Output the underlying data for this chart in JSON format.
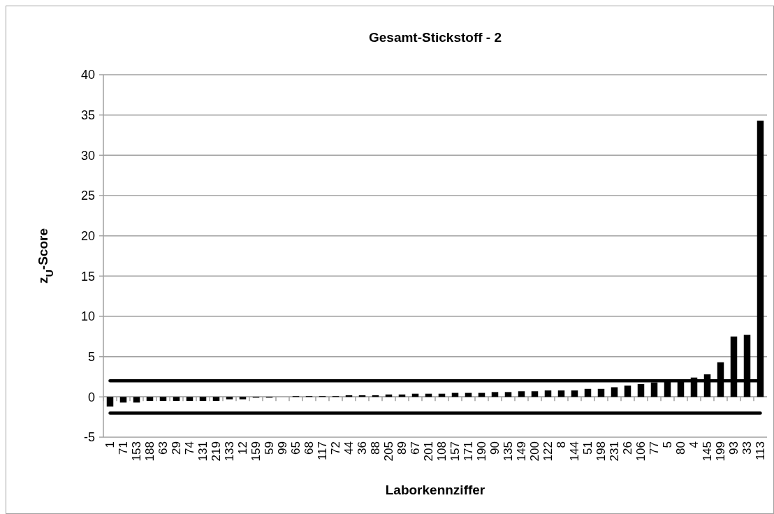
{
  "chart_data": {
    "type": "bar",
    "title": "Gesamt-Stickstoff - 2",
    "xlabel": "Laborkennziffer",
    "ylabel": "z$_{U}$-Score",
    "categories": [
      "1",
      "71",
      "153",
      "188",
      "63",
      "29",
      "74",
      "131",
      "219",
      "133",
      "12",
      "159",
      "59",
      "99",
      "65",
      "68",
      "117",
      "72",
      "44",
      "36",
      "88",
      "205",
      "89",
      "67",
      "201",
      "108",
      "157",
      "171",
      "190",
      "90",
      "135",
      "149",
      "200",
      "122",
      "8",
      "144",
      "51",
      "198",
      "231",
      "26",
      "106",
      "77",
      "5",
      "80",
      "4",
      "145",
      "199",
      "93",
      "33",
      "113"
    ],
    "values": [
      -1.2,
      -0.7,
      -0.7,
      -0.5,
      -0.5,
      -0.5,
      -0.5,
      -0.5,
      -0.5,
      -0.3,
      -0.3,
      -0.1,
      -0.1,
      0,
      0.1,
      0.1,
      0.1,
      0.1,
      0.2,
      0.2,
      0.2,
      0.3,
      0.3,
      0.4,
      0.4,
      0.4,
      0.5,
      0.5,
      0.5,
      0.6,
      0.6,
      0.7,
      0.7,
      0.8,
      0.8,
      0.8,
      1.0,
      1.0,
      1.2,
      1.4,
      1.6,
      1.8,
      1.9,
      2.0,
      2.4,
      2.8,
      4.3,
      7.5,
      7.7,
      34.3
    ],
    "color": "#000000",
    "ylim": [
      -5,
      40
    ],
    "yticks": [
      -5,
      0,
      5,
      10,
      15,
      20,
      25,
      30,
      35,
      40
    ],
    "grid": "y",
    "ref_lines": [
      {
        "axis": "y",
        "value": 2,
        "color": "#000000"
      },
      {
        "axis": "y",
        "value": -2,
        "color": "#000000"
      }
    ]
  }
}
